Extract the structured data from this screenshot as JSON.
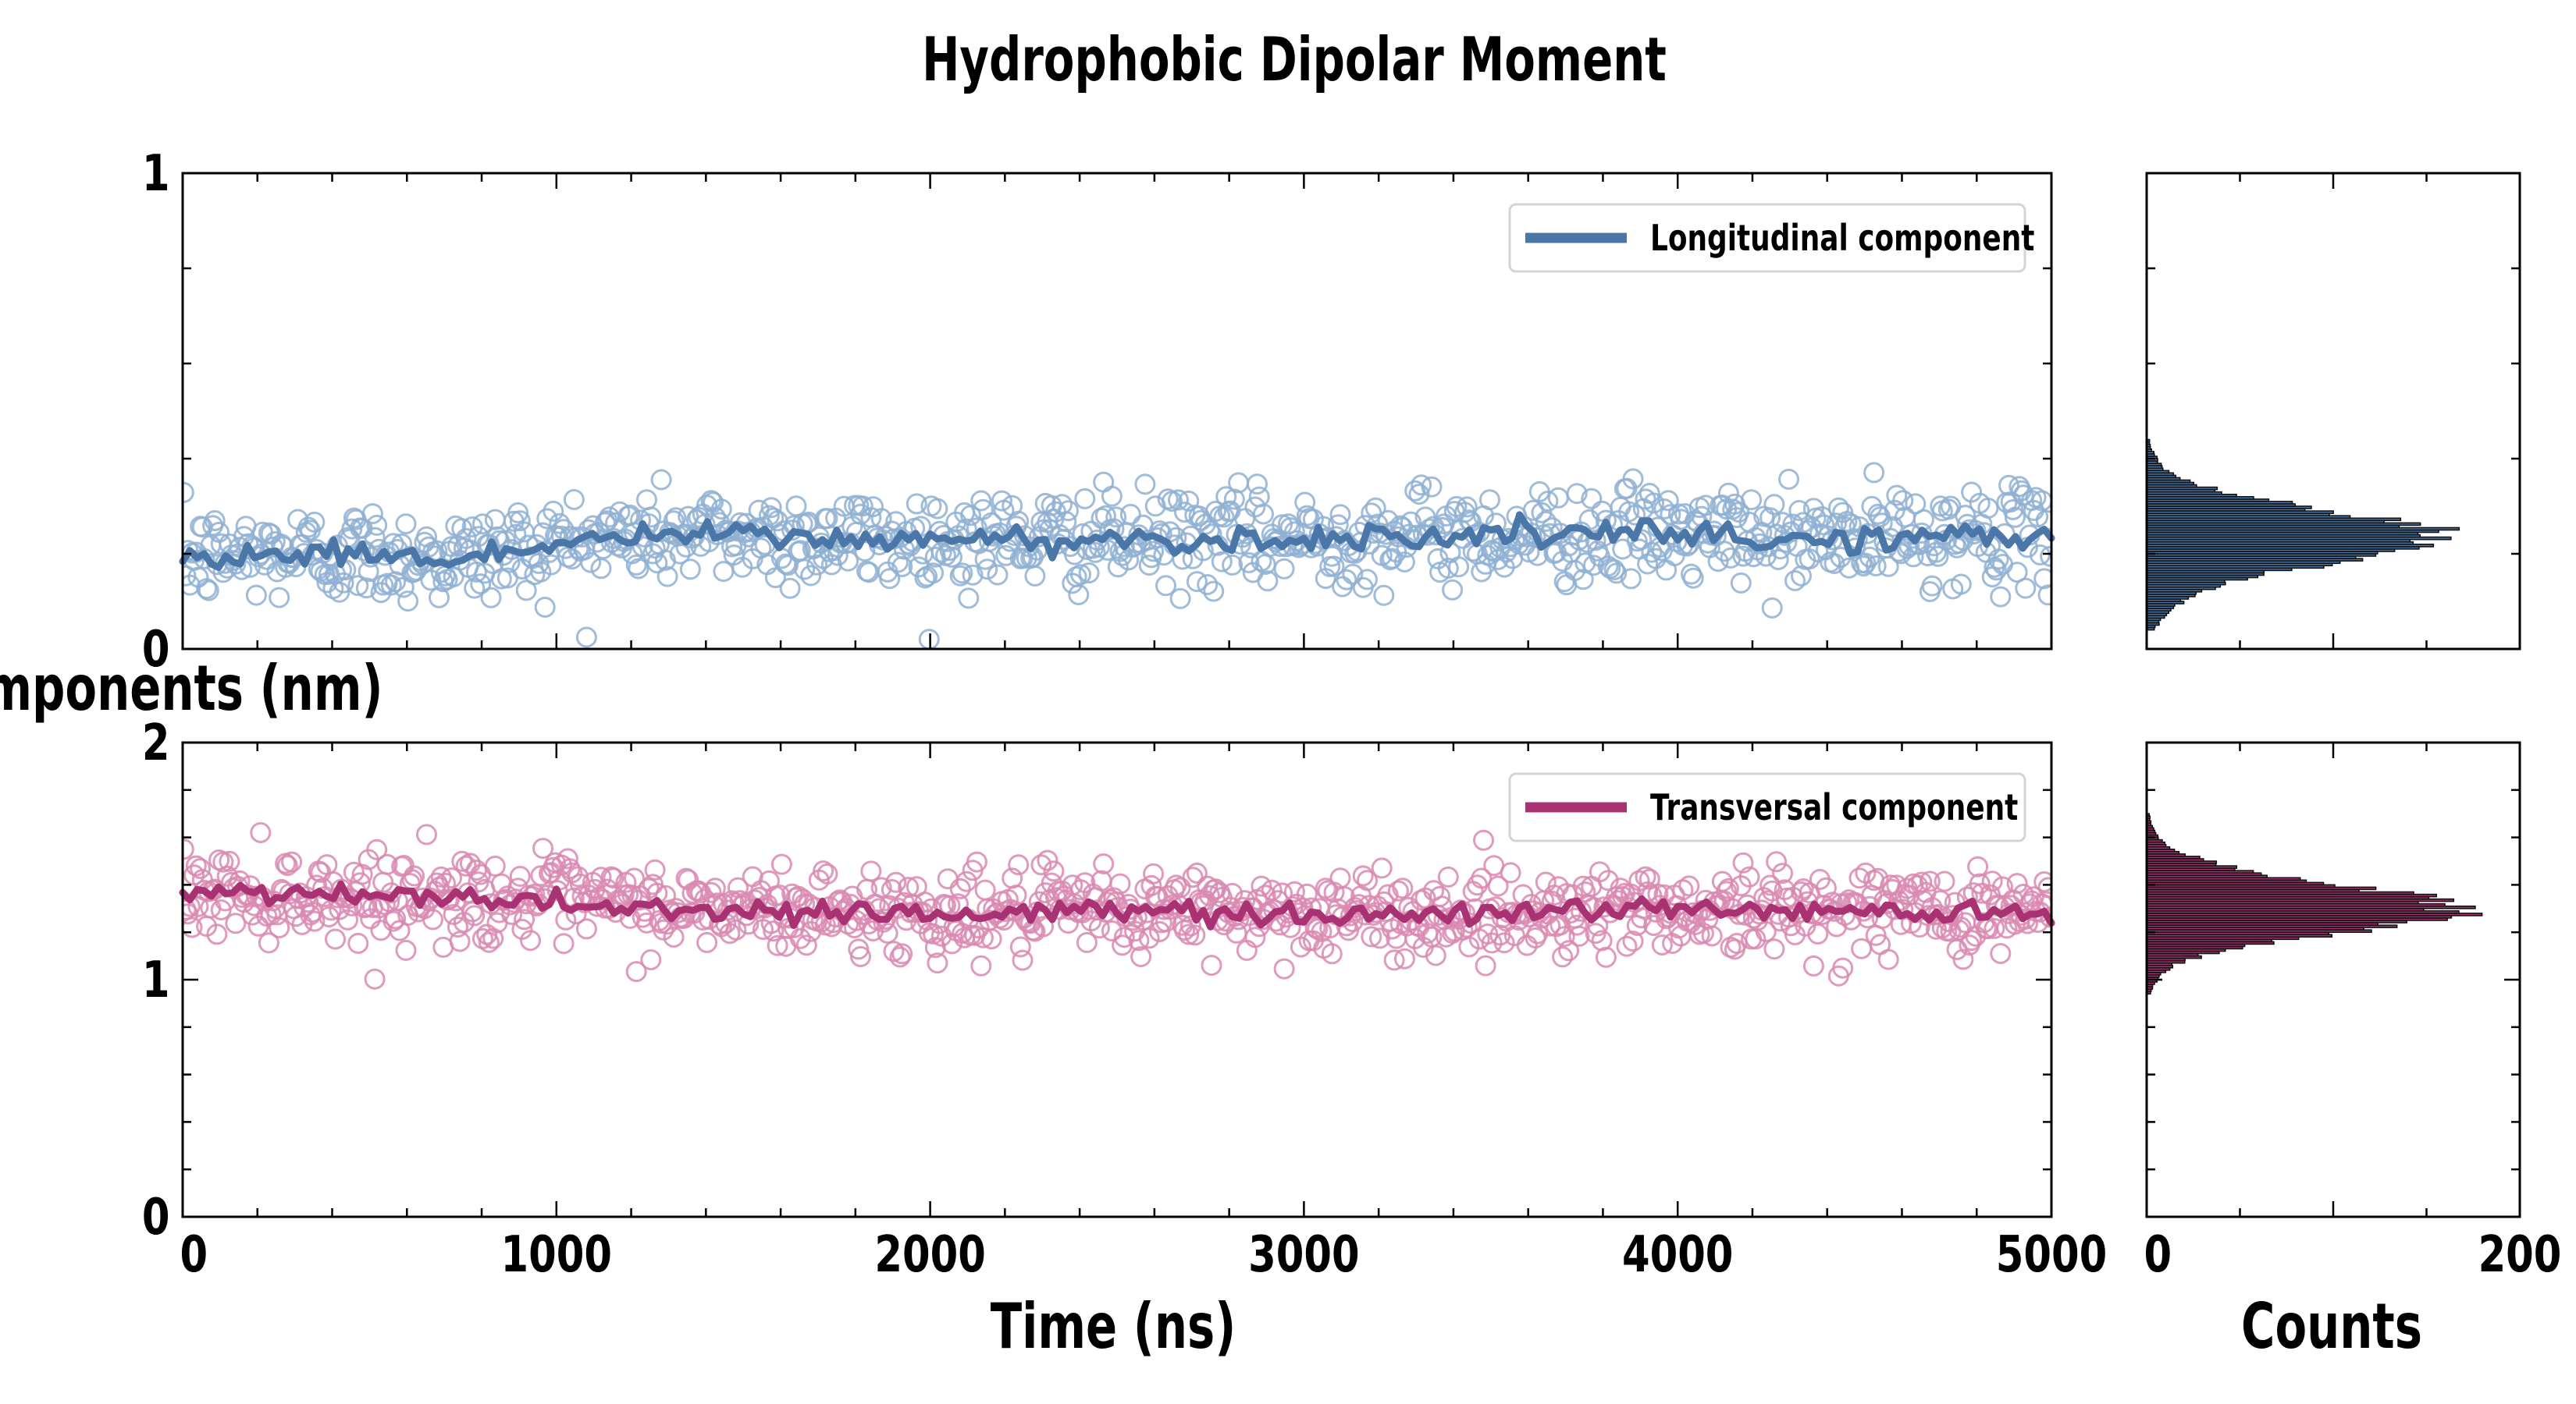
{
  "chart_data": [
    {
      "type": "scatter",
      "panel": "longitudinal-timeseries",
      "title": "Hydrophobic Dipolar Moment",
      "xlabel": "Time (ns)",
      "ylabel": "HDM components (nm)",
      "xlim": [
        0,
        5000
      ],
      "ylim": [
        0,
        1
      ],
      "x_ticks": [
        "0",
        "1000",
        "2000",
        "3000",
        "4000",
        "5000"
      ],
      "y_ticks": [
        "0",
        "1"
      ],
      "legend": {
        "label": "Longitudinal component",
        "position": "top-right"
      },
      "color": "#4a77a8",
      "scatter_color": "#8fb0d2",
      "series": [
        {
          "name": "Longitudinal component (running average)",
          "x": [
            0,
            250,
            500,
            750,
            1000,
            1250,
            1500,
            1750,
            2000,
            2250,
            2500,
            2750,
            3000,
            3250,
            3500,
            3750,
            4000,
            4250,
            4500,
            4750,
            5000
          ],
          "values": [
            0.19,
            0.2,
            0.2,
            0.19,
            0.22,
            0.24,
            0.24,
            0.23,
            0.23,
            0.23,
            0.23,
            0.23,
            0.23,
            0.24,
            0.24,
            0.24,
            0.24,
            0.23,
            0.23,
            0.24,
            0.23
          ]
        }
      ],
      "scatter": {
        "mean": 0.23,
        "spread": 0.05,
        "min": 0.0,
        "max": 0.42,
        "count": 900
      }
    },
    {
      "type": "scatter",
      "panel": "transversal-timeseries",
      "xlabel": "Time (ns)",
      "ylabel": "HDM components (nm)",
      "xlim": [
        0,
        5000
      ],
      "ylim": [
        0,
        2
      ],
      "x_ticks": [
        "0",
        "1000",
        "2000",
        "3000",
        "4000",
        "5000"
      ],
      "y_ticks": [
        "0",
        "1",
        "2"
      ],
      "legend": {
        "label": "Transversal component",
        "position": "top-right"
      },
      "color": "#a83272",
      "scatter_color": "#d98ab2",
      "series": [
        {
          "name": "Transversal component (running average)",
          "x": [
            0,
            250,
            500,
            750,
            1000,
            1250,
            1500,
            1750,
            2000,
            2250,
            2500,
            2750,
            3000,
            3250,
            3500,
            3750,
            4000,
            4250,
            4500,
            4750,
            5000
          ],
          "values": [
            1.37,
            1.36,
            1.35,
            1.35,
            1.33,
            1.3,
            1.29,
            1.29,
            1.28,
            1.28,
            1.29,
            1.29,
            1.28,
            1.27,
            1.28,
            1.3,
            1.3,
            1.29,
            1.3,
            1.29,
            1.29
          ]
        }
      ],
      "scatter": {
        "mean": 1.31,
        "spread": 0.09,
        "min": 0.88,
        "max": 1.62,
        "count": 900
      }
    },
    {
      "type": "bar",
      "orientation": "horizontal",
      "panel": "longitudinal-histogram",
      "xlabel": "Counts",
      "xlim": [
        0,
        200
      ],
      "ylim": [
        0,
        1
      ],
      "color": "#4a77a8",
      "bins": [
        0.04,
        0.06,
        0.08,
        0.1,
        0.12,
        0.14,
        0.16,
        0.18,
        0.2,
        0.22,
        0.24,
        0.26,
        0.28,
        0.3,
        0.32,
        0.34,
        0.36,
        0.38,
        0.4,
        0.42
      ],
      "counts": [
        4,
        8,
        12,
        20,
        30,
        45,
        70,
        100,
        130,
        150,
        160,
        140,
        110,
        80,
        50,
        30,
        15,
        8,
        5,
        2
      ]
    },
    {
      "type": "bar",
      "orientation": "horizontal",
      "panel": "transversal-histogram",
      "xlabel": "Counts",
      "x_ticks": [
        "0",
        "200"
      ],
      "xlim": [
        0,
        200
      ],
      "ylim": [
        0,
        2
      ],
      "color": "#a83272",
      "bins": [
        0.94,
        0.98,
        1.02,
        1.06,
        1.1,
        1.14,
        1.18,
        1.22,
        1.26,
        1.3,
        1.34,
        1.38,
        1.42,
        1.46,
        1.5,
        1.54,
        1.58,
        1.62,
        1.66
      ],
      "counts": [
        2,
        4,
        8,
        15,
        30,
        55,
        90,
        130,
        160,
        168,
        150,
        115,
        80,
        50,
        30,
        15,
        8,
        4,
        2
      ]
    }
  ]
}
